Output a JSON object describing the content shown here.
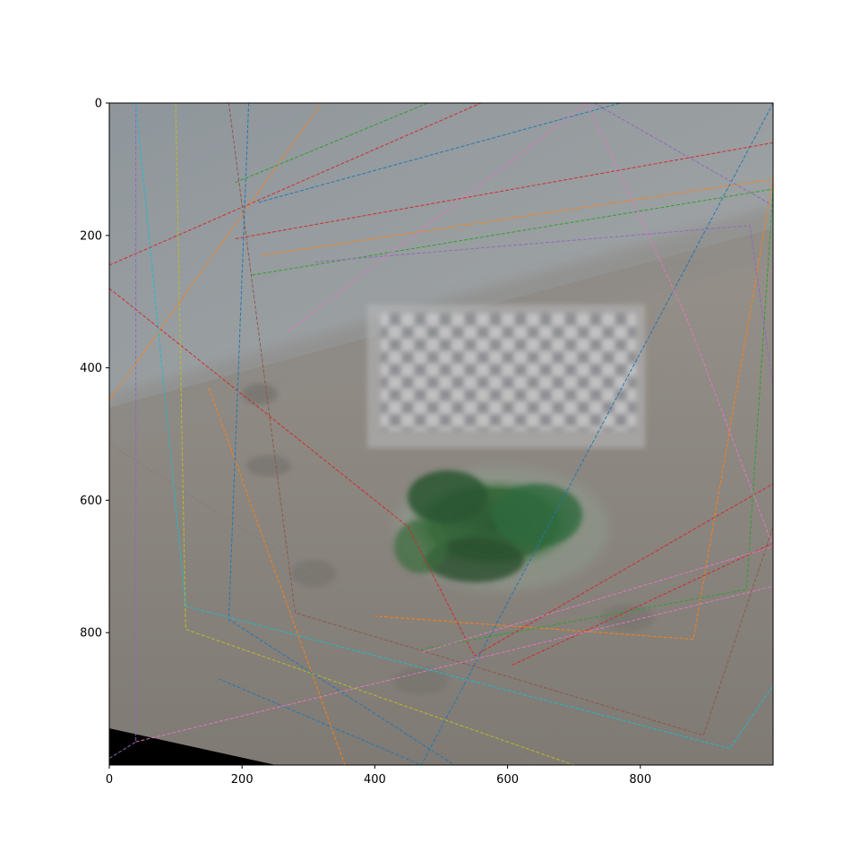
{
  "chart_data": {
    "type": "image",
    "title": "",
    "xlabel": "",
    "ylabel": "",
    "xlim": [
      0,
      1000
    ],
    "ylim": [
      1000,
      0
    ],
    "xticks": [
      0,
      200,
      400,
      600,
      800
    ],
    "yticks": [
      0,
      200,
      400,
      600,
      800
    ],
    "background_image": "blended photo of a green leafy plant on a floor in front of a wall with a blurred checkerboard calibration pattern",
    "grid": false,
    "legend": "none",
    "quads": [
      {
        "color": "#1f77b4",
        "points": [
          [
            225,
            150
          ],
          [
            770,
            0
          ],
          [
            1000,
            -50
          ],
          [
            1000,
            0
          ],
          [
            470,
            1000
          ],
          [
            165,
            870
          ]
        ]
      },
      {
        "color": "#ff7f0e",
        "points": [
          [
            230,
            230
          ],
          [
            1000,
            115
          ],
          [
            880,
            810
          ],
          [
            400,
            775
          ]
        ]
      },
      {
        "color": "#2ca02c",
        "points": [
          [
            190,
            120
          ],
          [
            480,
            0
          ]
        ]
      },
      {
        "color": "#2ca02c",
        "points": [
          [
            215,
            260
          ],
          [
            1000,
            130
          ],
          [
            960,
            735
          ],
          [
            470,
            825
          ]
        ]
      },
      {
        "color": "#d62728",
        "points": [
          [
            190,
            205
          ],
          [
            1000,
            60
          ],
          [
            1000,
            665
          ],
          [
            605,
            850
          ]
        ]
      },
      {
        "color": "#d62728",
        "points": [
          [
            0,
            245
          ],
          [
            560,
            0
          ]
        ]
      },
      {
        "color": "#d62728",
        "points": [
          [
            0,
            280
          ],
          [
            450,
            640
          ],
          [
            550,
            835
          ],
          [
            1000,
            575
          ]
        ]
      },
      {
        "color": "#9467bd",
        "points": [
          [
            310,
            240
          ],
          [
            965,
            185
          ],
          [
            1000,
            430
          ]
        ]
      },
      {
        "color": "#9467bd",
        "points": [
          [
            40,
            0
          ],
          [
            40,
            965
          ],
          [
            0,
            990
          ]
        ]
      },
      {
        "color": "#9467bd",
        "points": [
          [
            730,
            0
          ],
          [
            1000,
            155
          ]
        ]
      },
      {
        "color": "#8c564b",
        "points": [
          [
            180,
            0
          ],
          [
            280,
            770
          ],
          [
            895,
            955
          ],
          [
            1000,
            640
          ]
        ]
      },
      {
        "color": "#e377c2",
        "points": [
          [
            270,
            345
          ],
          [
            720,
            0
          ],
          [
            870,
            325
          ],
          [
            1000,
            670
          ],
          [
            470,
            830
          ]
        ]
      },
      {
        "color": "#e377c2",
        "points": [
          [
            40,
            965
          ],
          [
            1000,
            730
          ]
        ]
      },
      {
        "color": "#7f7f7f",
        "points": [
          [
            0,
            515
          ],
          [
            400,
            770
          ],
          [
            640,
            1000
          ]
        ]
      },
      {
        "color": "#bcbd22",
        "points": [
          [
            100,
            0
          ],
          [
            115,
            795
          ],
          [
            700,
            1000
          ]
        ]
      },
      {
        "color": "#17becf",
        "points": [
          [
            40,
            0
          ],
          [
            115,
            760
          ],
          [
            935,
            975
          ],
          [
            1000,
            880
          ]
        ]
      },
      {
        "color": "#ff7f0e",
        "points": [
          [
            0,
            450
          ],
          [
            320,
            0
          ]
        ]
      },
      {
        "color": "#ff7f0e",
        "points": [
          [
            150,
            430
          ],
          [
            355,
            1000
          ]
        ]
      },
      {
        "color": "#1f77b4",
        "points": [
          [
            210,
            0
          ],
          [
            180,
            780
          ],
          [
            520,
            1000
          ]
        ]
      }
    ]
  }
}
